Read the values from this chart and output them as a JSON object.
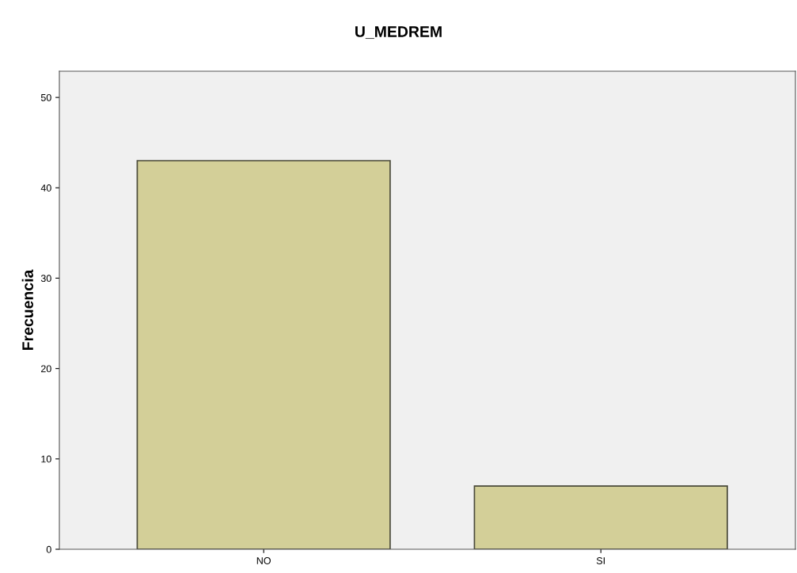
{
  "chart_data": {
    "type": "bar",
    "title": "U_MEDREM",
    "ylabel": "Frecuencia",
    "categories": [
      "NO",
      "SI"
    ],
    "values": [
      43,
      7
    ],
    "color": "#d3cf98",
    "ylim": [
      0,
      52.9
    ],
    "yticks": [
      0,
      10,
      20,
      30,
      40,
      50
    ],
    "grid": false,
    "legend": false
  }
}
